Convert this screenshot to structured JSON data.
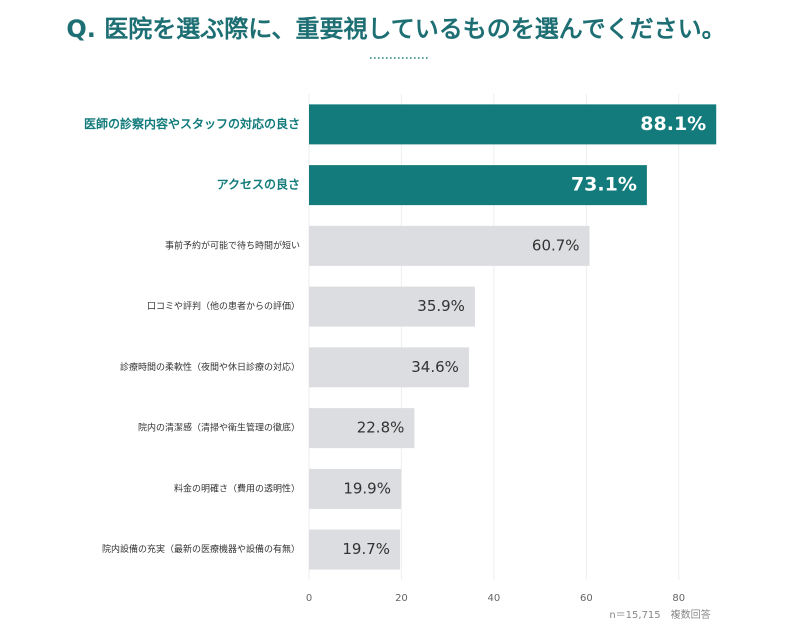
{
  "chart_data": {
    "type": "hbar",
    "title": "Q. 医院を選ぶ際に、重要視しているものを選んでください。",
    "note": "n＝15,715　複数回答",
    "categories": [
      "医師の診察内容やスタッフの対応の良さ",
      "アクセスの良さ",
      "事前予約が可能で待ち時間が短い",
      "口コミや評判（他の患者からの評価）",
      "診療時間の柔軟性（夜間や休日診療の対応）",
      "院内の清潔感（清掃や衛生管理の徹底）",
      "料金の明確さ（費用の透明性）",
      "院内設備の充実（最新の医療機器や設備の有無）"
    ],
    "values": [
      88.1,
      73.1,
      60.7,
      35.9,
      34.6,
      22.8,
      19.9,
      19.7
    ],
    "value_labels": [
      "88.1%",
      "73.1%",
      "60.7%",
      "35.9%",
      "34.6%",
      "22.8%",
      "19.9%",
      "19.7%"
    ],
    "colors": [
      "#137b7b",
      "#137b7b",
      "#dcdde0",
      "#dcdde0",
      "#dcdde0",
      "#dcdde0",
      "#dcdde0",
      "#dcdde0"
    ],
    "xlim": [
      0,
      90
    ],
    "xticks": [
      0,
      20,
      40,
      60,
      80
    ],
    "grid": true
  }
}
